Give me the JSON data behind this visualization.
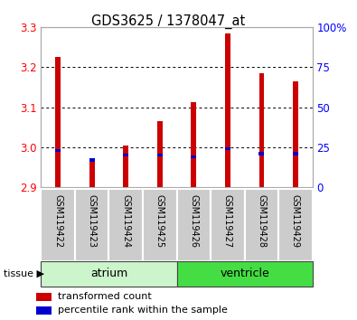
{
  "title": "GDS3625 / 1378047_at",
  "samples": [
    "GSM119422",
    "GSM119423",
    "GSM119424",
    "GSM119425",
    "GSM119426",
    "GSM119427",
    "GSM119428",
    "GSM119429"
  ],
  "transformed_counts": [
    3.225,
    2.965,
    3.005,
    3.065,
    3.113,
    3.285,
    3.185,
    3.165
  ],
  "percentile_ranks": [
    23,
    17,
    20,
    20,
    19,
    24,
    21,
    21
  ],
  "ylim_left": [
    2.9,
    3.3
  ],
  "ylim_right": [
    0,
    100
  ],
  "yticks_left": [
    2.9,
    3.0,
    3.1,
    3.2,
    3.3
  ],
  "yticks_right": [
    0,
    25,
    50,
    75,
    100
  ],
  "ytick_labels_right": [
    "0",
    "25",
    "50",
    "75",
    "100%"
  ],
  "bar_color": "#cc0000",
  "percentile_color": "#0000cc",
  "base_value": 2.9,
  "tissue_groups": [
    {
      "label": "atrium",
      "start": 0,
      "end": 4,
      "color": "#ccf5cc"
    },
    {
      "label": "ventricle",
      "start": 4,
      "end": 8,
      "color": "#44dd44"
    }
  ],
  "tissue_label": "tissue",
  "legend_items": [
    {
      "label": "transformed count",
      "color": "#cc0000"
    },
    {
      "label": "percentile rank within the sample",
      "color": "#0000cc"
    }
  ],
  "grid_color": "#000000",
  "background_color": "#ffffff",
  "bar_width": 0.15,
  "sample_bg": "#cccccc"
}
